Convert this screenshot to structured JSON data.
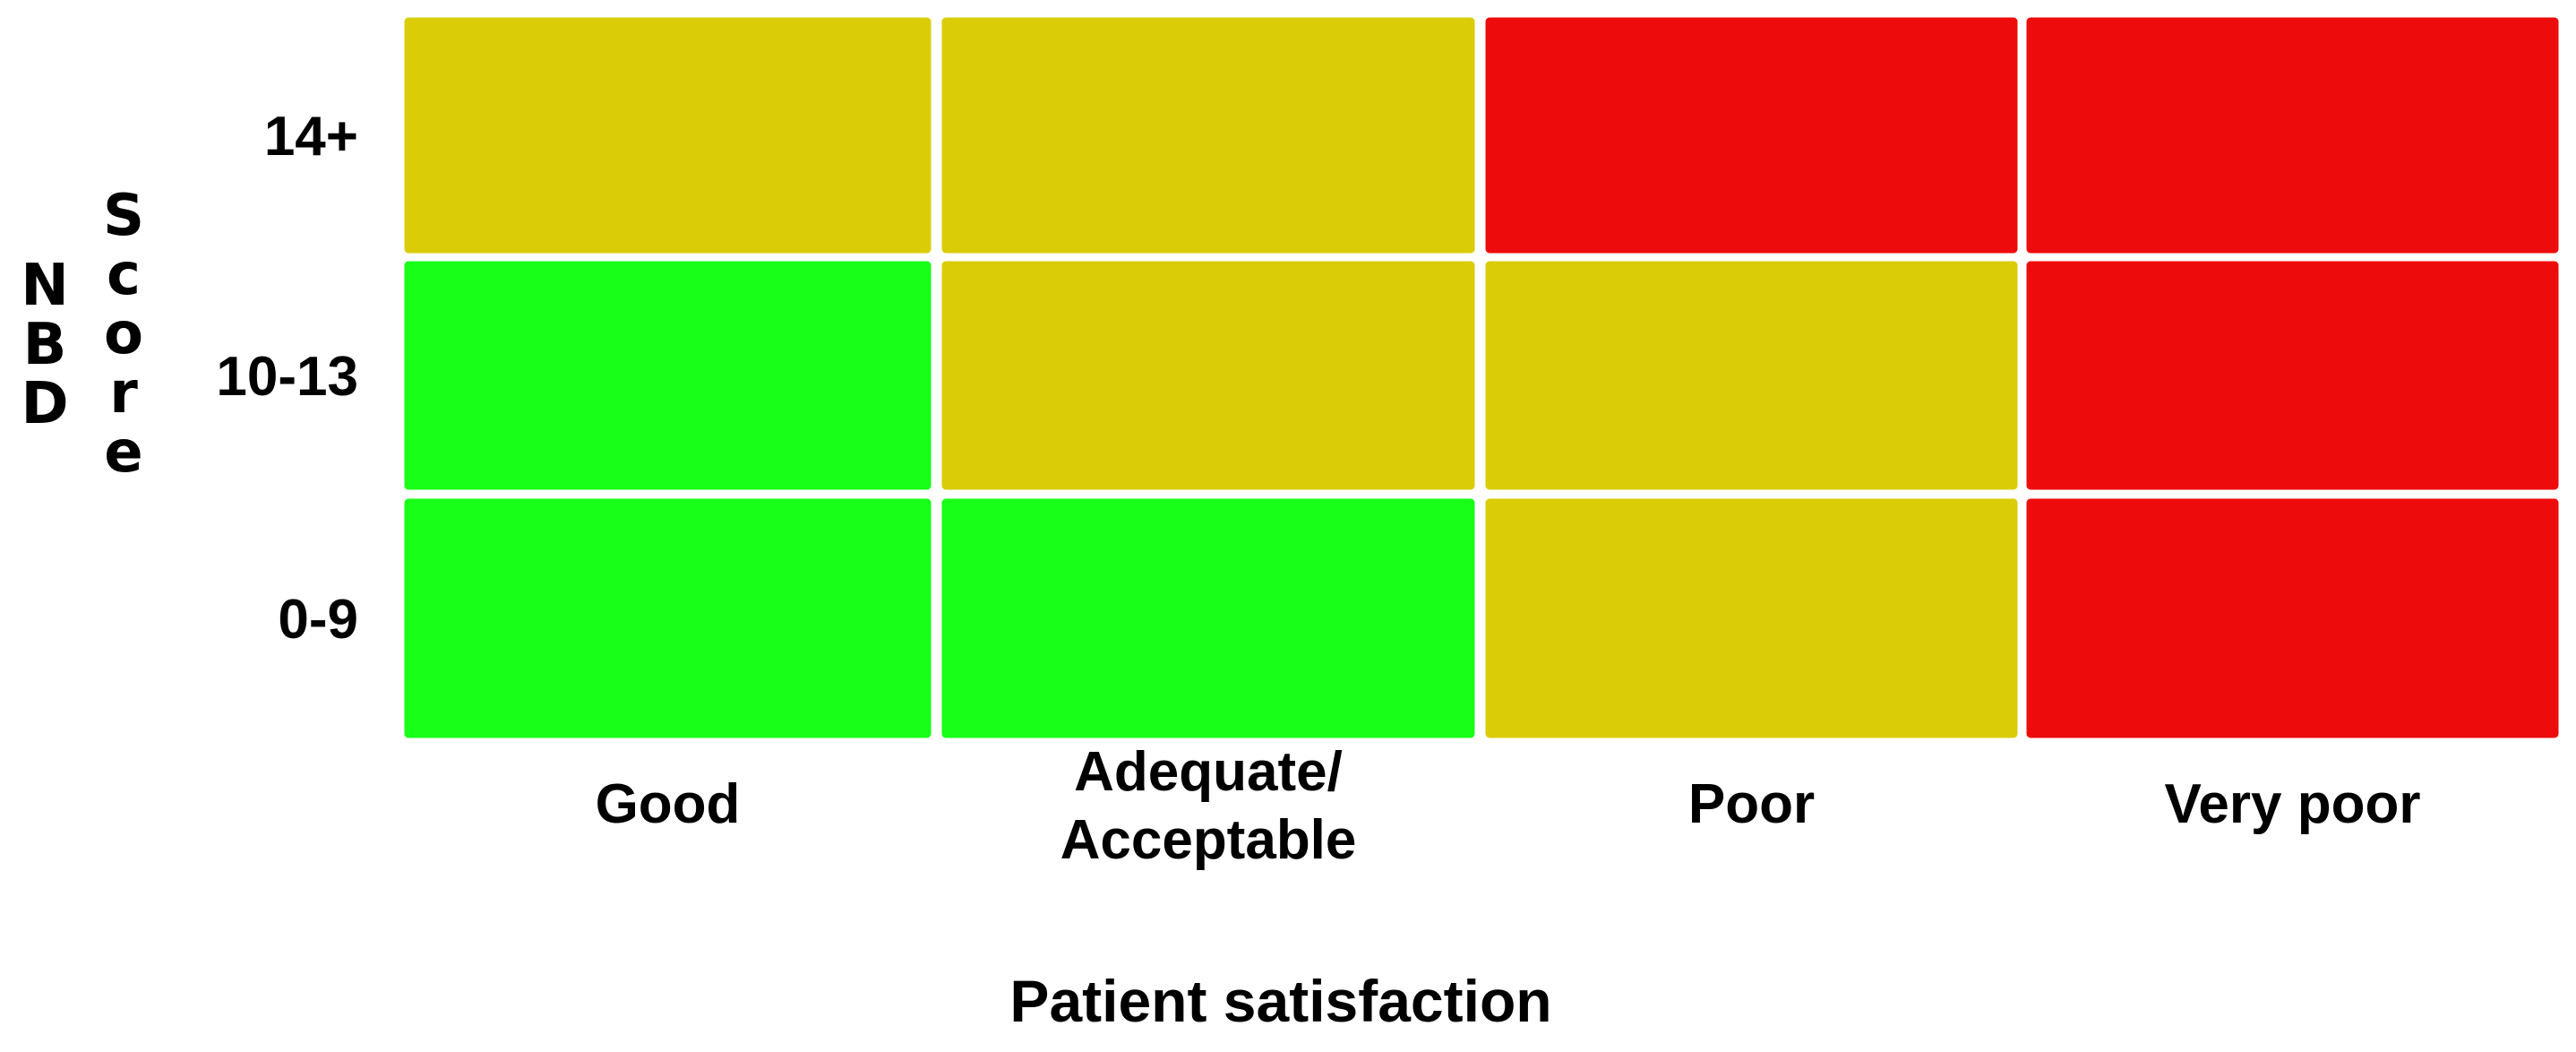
{
  "chart_data": {
    "type": "heatmap",
    "title": "",
    "xlabel": "Patient satisfaction",
    "ylabel_left": "NBD",
    "ylabel_right": "Score",
    "columns": [
      "Good",
      "Adequate/\nAcceptable",
      "Poor",
      "Very poor"
    ],
    "rows": [
      "14+",
      "10-13",
      "0-9"
    ],
    "cells": [
      [
        "yellow",
        "yellow",
        "red",
        "red"
      ],
      [
        "green",
        "yellow",
        "yellow",
        "red"
      ],
      [
        "green",
        "green",
        "yellow",
        "red"
      ]
    ],
    "colors": {
      "green": "#18ff18",
      "yellow": "#dacd08",
      "red": "#ee0b0b"
    }
  }
}
